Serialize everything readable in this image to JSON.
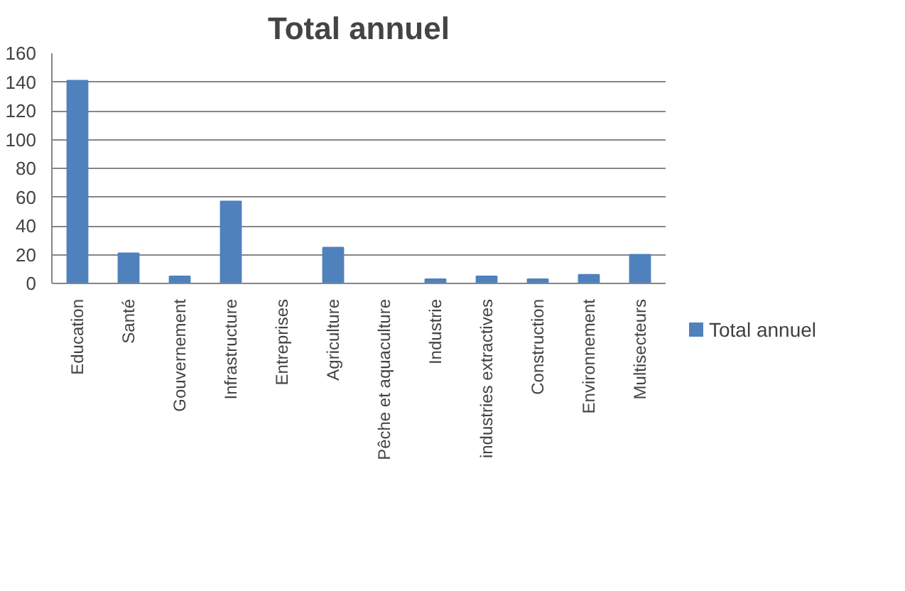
{
  "chart_data": {
    "type": "bar",
    "title": "Total annuel",
    "categories": [
      "Education",
      "Santé",
      "Gouvernement",
      "Infrastructure",
      "Entreprises",
      "Agriculture",
      "Pêche et aquaculture",
      "Industrie",
      "industries extractives",
      "Construction",
      "Environnement",
      "Multisecteurs"
    ],
    "series": [
      {
        "name": "Total annuel",
        "color": "#4f81bd",
        "values": [
          141,
          21,
          5,
          57,
          0,
          25,
          0,
          3,
          5,
          3,
          6,
          20
        ]
      }
    ],
    "ylim": [
      0,
      160
    ],
    "yticks": [
      0,
      20,
      40,
      60,
      80,
      100,
      120,
      140,
      160
    ],
    "grid": "y",
    "legend": "right"
  }
}
